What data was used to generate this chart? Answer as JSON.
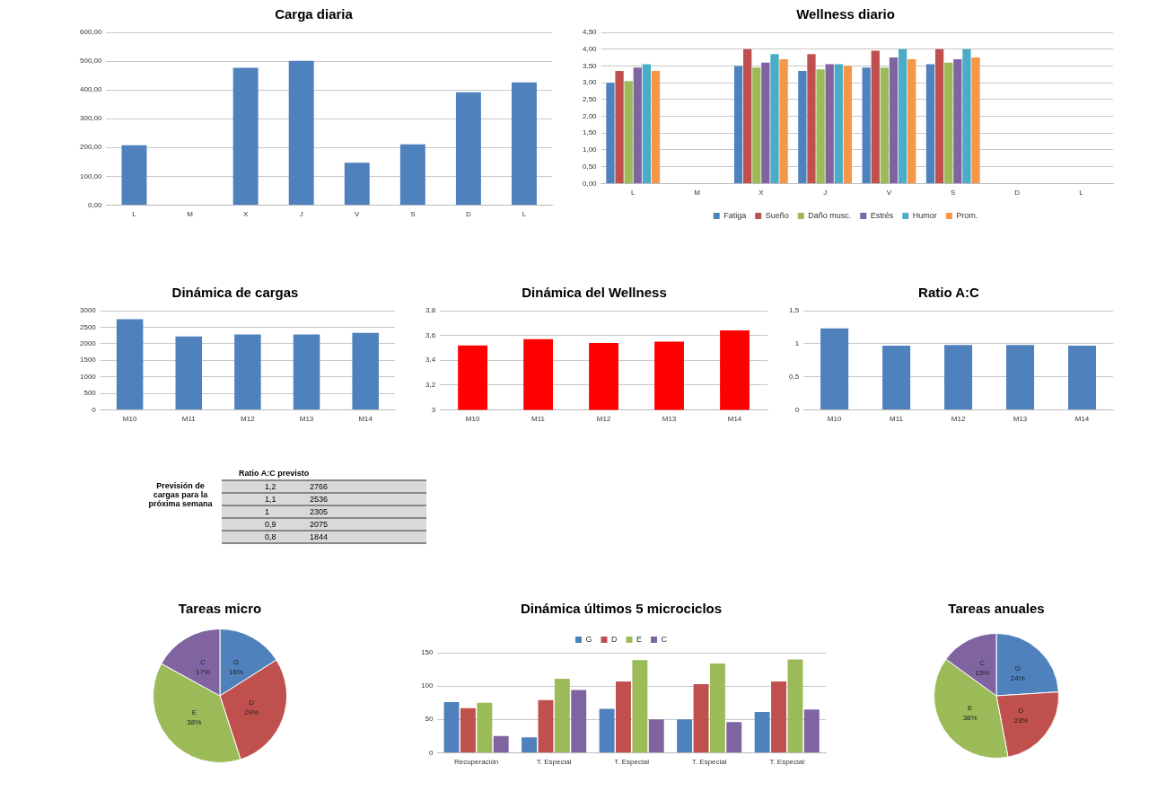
{
  "chart_data": [
    {
      "type": "bar",
      "title": "Carga diaria",
      "categories": [
        "L",
        "M",
        "X",
        "J",
        "V",
        "S",
        "D",
        "L"
      ],
      "values": [
        208,
        0,
        477,
        501,
        147,
        211,
        392,
        426
      ],
      "color": "#4f81bd",
      "ylim": [
        0,
        600
      ],
      "yticks": [
        {
          "value": 0,
          "label": "0,00"
        },
        {
          "value": 100,
          "label": "100,00"
        },
        {
          "value": 200,
          "label": "200,00"
        },
        {
          "value": 300,
          "label": "300,00"
        },
        {
          "value": 400,
          "label": "400,00"
        },
        {
          "value": 500,
          "label": "500,00"
        },
        {
          "value": 600,
          "label": "600,00"
        }
      ],
      "grid": "y"
    },
    {
      "type": "bar",
      "title": "Wellness diario",
      "categories": [
        "L",
        "M",
        "X",
        "J",
        "V",
        "S",
        "D",
        "L"
      ],
      "series": [
        {
          "name": "Fatiga",
          "color": "#4f81bd",
          "values": [
            3.0,
            null,
            3.5,
            3.35,
            3.45,
            3.55,
            null,
            null
          ]
        },
        {
          "name": "Sueño",
          "color": "#c0504d",
          "values": [
            3.35,
            null,
            4.0,
            3.85,
            3.95,
            4.0,
            null,
            null
          ]
        },
        {
          "name": "Daño musc.",
          "color": "#9bbb59",
          "values": [
            3.05,
            null,
            3.45,
            3.4,
            3.45,
            3.6,
            null,
            null
          ]
        },
        {
          "name": "Estrés",
          "color": "#8064a2",
          "values": [
            3.45,
            null,
            3.6,
            3.55,
            3.75,
            3.7,
            null,
            null
          ]
        },
        {
          "name": "Humor",
          "color": "#4bacc6",
          "values": [
            3.55,
            null,
            3.85,
            3.55,
            4.0,
            4.0,
            null,
            null
          ]
        },
        {
          "name": "Prom.",
          "color": "#f79646",
          "values": [
            3.35,
            null,
            3.7,
            3.5,
            3.7,
            3.75,
            null,
            null
          ]
        }
      ],
      "ylim": [
        0,
        4.5
      ],
      "yticks": [
        {
          "value": 0,
          "label": "0,00"
        },
        {
          "value": 0.5,
          "label": "0,50"
        },
        {
          "value": 1,
          "label": "1,00"
        },
        {
          "value": 1.5,
          "label": "1,50"
        },
        {
          "value": 2,
          "label": "2,00"
        },
        {
          "value": 2.5,
          "label": "2,50"
        },
        {
          "value": 3,
          "label": "3,00"
        },
        {
          "value": 3.5,
          "label": "3,50"
        },
        {
          "value": 4,
          "label": "4,00"
        },
        {
          "value": 4.5,
          "label": "4,50"
        }
      ],
      "grid": "y",
      "legend": "bottom"
    },
    {
      "type": "bar",
      "title": "Dinámica de cargas",
      "categories": [
        "M10",
        "M11",
        "M12",
        "M13",
        "M14"
      ],
      "values": [
        2740,
        2220,
        2280,
        2280,
        2330
      ],
      "color": "#4f81bd",
      "ylim": [
        0,
        3000
      ],
      "yticks": [
        0,
        500,
        1000,
        1500,
        2000,
        2500,
        3000
      ],
      "grid": "y"
    },
    {
      "type": "bar",
      "title": "Dinámica del Wellness",
      "categories": [
        "M10",
        "M11",
        "M12",
        "M13",
        "M14"
      ],
      "values": [
        3.52,
        3.57,
        3.54,
        3.55,
        3.64
      ],
      "color": "#ff0000",
      "ylim": [
        3,
        3.8
      ],
      "yticks": [
        3,
        {
          "value": 3.2,
          "label": "3,2"
        },
        {
          "value": 3.4,
          "label": "3,4"
        },
        {
          "value": 3.6,
          "label": "3,6"
        },
        {
          "value": 3.8,
          "label": "3,8"
        }
      ],
      "grid": "y"
    },
    {
      "type": "bar",
      "title": "Ratio A:C",
      "categories": [
        "M10",
        "M11",
        "M12",
        "M13",
        "M14"
      ],
      "values": [
        1.23,
        0.97,
        0.98,
        0.98,
        0.97
      ],
      "color": "#4f81bd",
      "ylim": [
        0,
        1.5
      ],
      "yticks": [
        0,
        {
          "value": 0.5,
          "label": "0,5"
        },
        1,
        {
          "value": 1.5,
          "label": "1,5"
        }
      ],
      "grid": "y"
    },
    {
      "type": "other",
      "title": "Ratio A:C previsto",
      "annotations": [
        "Previsión de cargas para la próxima semana",
        "1,2\t2766",
        "1,1\t2536",
        "1\t2305",
        "0,9\t2075",
        "0,8\t1844"
      ]
    },
    {
      "type": "pie",
      "title": "Tareas micro",
      "categories": [
        "G",
        "D",
        "E",
        "C"
      ],
      "values": [
        16,
        29,
        38,
        17
      ],
      "value_labels": [
        "16%",
        "29%",
        "38%",
        "17%"
      ],
      "colors": [
        "#4f81bd",
        "#c0504d",
        "#9bbb59",
        "#8064a2"
      ]
    },
    {
      "type": "bar",
      "title": "Dinámica últimos 5 microciclos",
      "categories": [
        "Recuperación",
        "T. Especial",
        "T. Especial",
        "T. Especial",
        "T. Especial"
      ],
      "series": [
        {
          "name": "G",
          "color": "#4f81bd",
          "values": [
            76,
            23,
            66,
            50,
            61
          ]
        },
        {
          "name": "D",
          "color": "#c0504d",
          "values": [
            67,
            79,
            107,
            103,
            107
          ]
        },
        {
          "name": "E",
          "color": "#9bbb59",
          "values": [
            75,
            111,
            139,
            134,
            140
          ]
        },
        {
          "name": "C",
          "color": "#8064a2",
          "values": [
            25,
            94,
            50,
            46,
            65
          ]
        }
      ],
      "ylim": [
        0,
        150
      ],
      "yticks": [
        0,
        50,
        100,
        150
      ],
      "grid": "y",
      "legend": "top"
    },
    {
      "type": "pie",
      "title": "Tareas anuales",
      "categories": [
        "G",
        "D",
        "E",
        "C"
      ],
      "values": [
        24,
        23,
        38,
        15
      ],
      "value_labels": [
        "24%",
        "23%",
        "38%",
        "15%"
      ],
      "colors": [
        "#4f81bd",
        "#c0504d",
        "#9bbb59",
        "#8064a2"
      ]
    }
  ]
}
